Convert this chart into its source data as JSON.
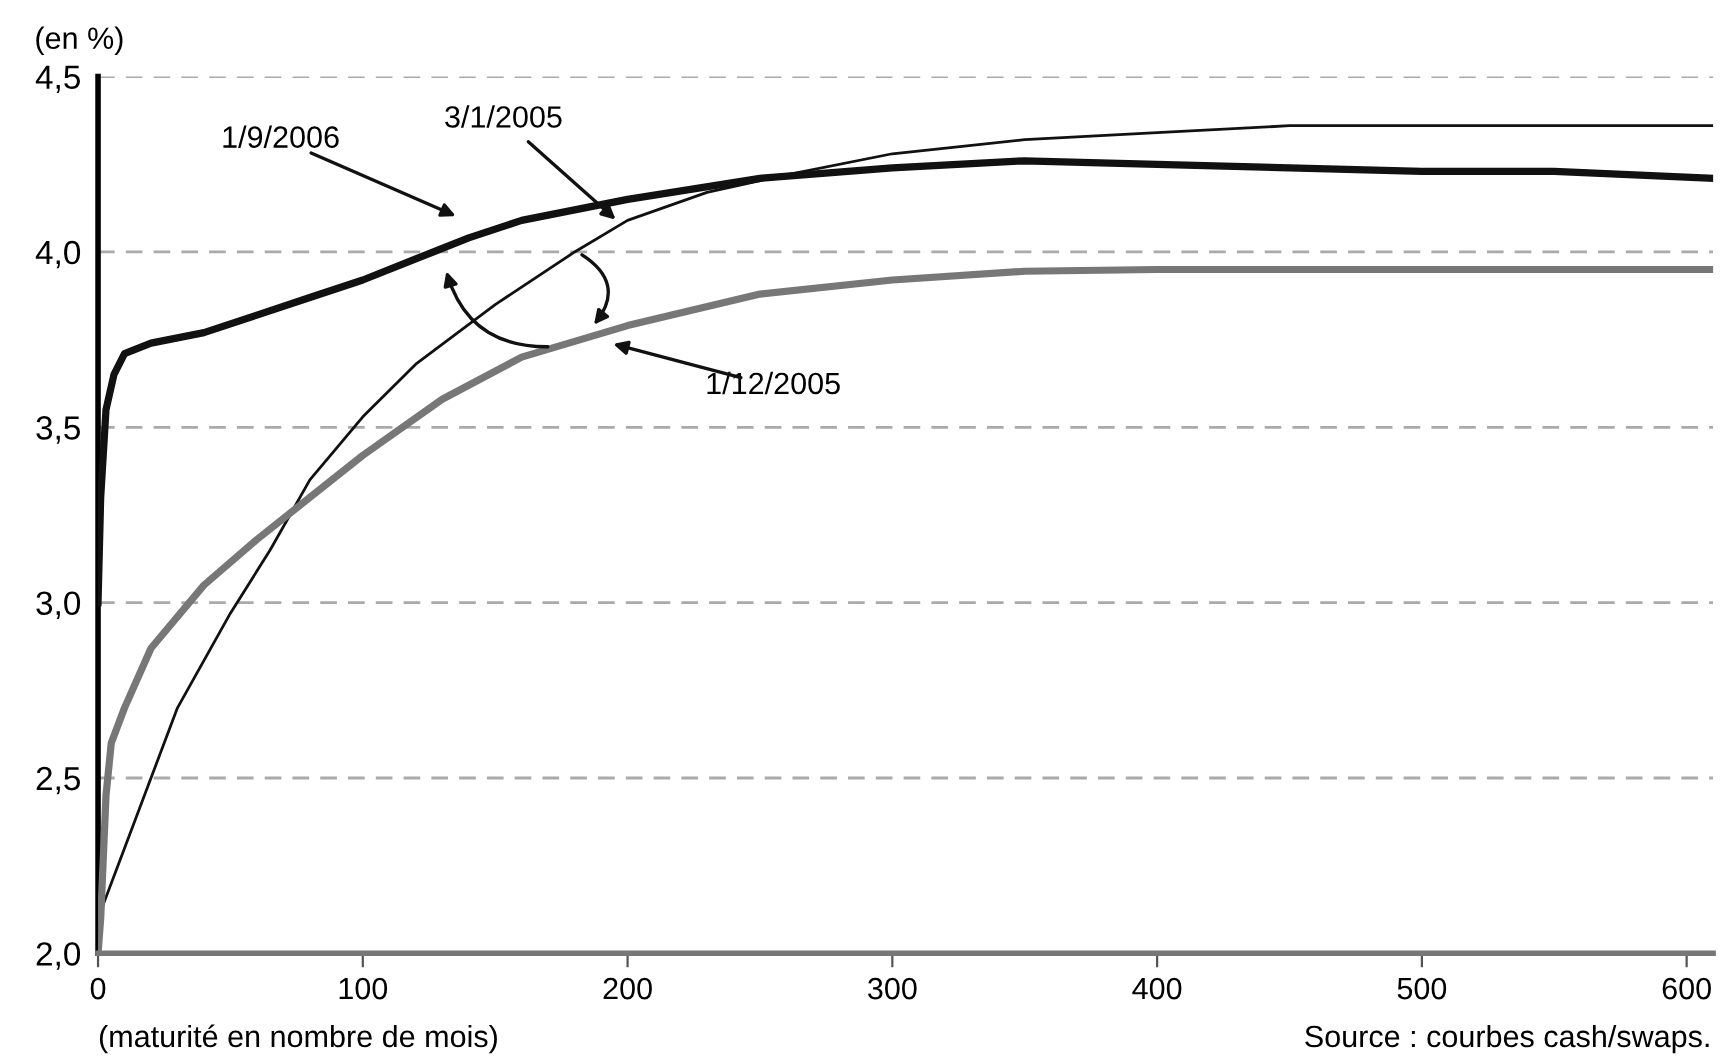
{
  "chart_data": {
    "type": "line",
    "ylabel": "(en %)",
    "xlabel": "(maturité en nombre de mois)",
    "xlim": [
      0,
      610
    ],
    "xticks": [
      0,
      100,
      200,
      300,
      400,
      500,
      600
    ],
    "ylim": [
      2.0,
      4.5
    ],
    "yticks": [
      {
        "value": 2.0,
        "label": "2,0"
      },
      {
        "value": 2.5,
        "label": "2,5"
      },
      {
        "value": 3.0,
        "label": "3,0"
      },
      {
        "value": 3.5,
        "label": "3,5"
      },
      {
        "value": 4.0,
        "label": "4,0"
      },
      {
        "value": 4.5,
        "label": "4,5"
      }
    ],
    "grid": "y",
    "legend": false,
    "marker": "none",
    "line_style": "solid",
    "series": [
      {
        "color": "#111111",
        "x": [
          0,
          1,
          3,
          6,
          10,
          20,
          40,
          60,
          80,
          100,
          120,
          140,
          160,
          200,
          250,
          300,
          350,
          400,
          450,
          500,
          550,
          610
        ],
        "values": [
          3.0,
          3.3,
          3.55,
          3.65,
          3.71,
          3.74,
          3.77,
          3.82,
          3.87,
          3.92,
          3.98,
          4.04,
          4.09,
          4.15,
          4.21,
          4.24,
          4.26,
          4.25,
          4.24,
          4.23,
          4.23,
          4.21
        ]
      },
      {
        "color": "#111111",
        "x": [
          0,
          10,
          20,
          30,
          50,
          65,
          80,
          100,
          120,
          150,
          180,
          200,
          230,
          260,
          300,
          350,
          400,
          450,
          500,
          610
        ],
        "values": [
          2.1,
          2.3,
          2.5,
          2.7,
          2.97,
          3.15,
          3.35,
          3.53,
          3.68,
          3.85,
          4.0,
          4.09,
          4.17,
          4.22,
          4.28,
          4.32,
          4.34,
          4.36,
          4.36,
          4.36
        ]
      },
      {
        "color": "#777777",
        "x": [
          0,
          1,
          3,
          5,
          10,
          20,
          40,
          60,
          80,
          100,
          130,
          160,
          200,
          250,
          300,
          350,
          400,
          610
        ],
        "values": [
          2.0,
          2.1,
          2.45,
          2.6,
          2.7,
          2.87,
          3.05,
          3.18,
          3.3,
          3.42,
          3.58,
          3.7,
          3.79,
          3.88,
          3.92,
          3.945,
          3.95,
          3.95
        ]
      }
    ],
    "annotations": [
      "1/9/2006",
      "3/1/2005",
      "1/12/2005",
      "Source : courbes cash/swaps."
    ]
  }
}
